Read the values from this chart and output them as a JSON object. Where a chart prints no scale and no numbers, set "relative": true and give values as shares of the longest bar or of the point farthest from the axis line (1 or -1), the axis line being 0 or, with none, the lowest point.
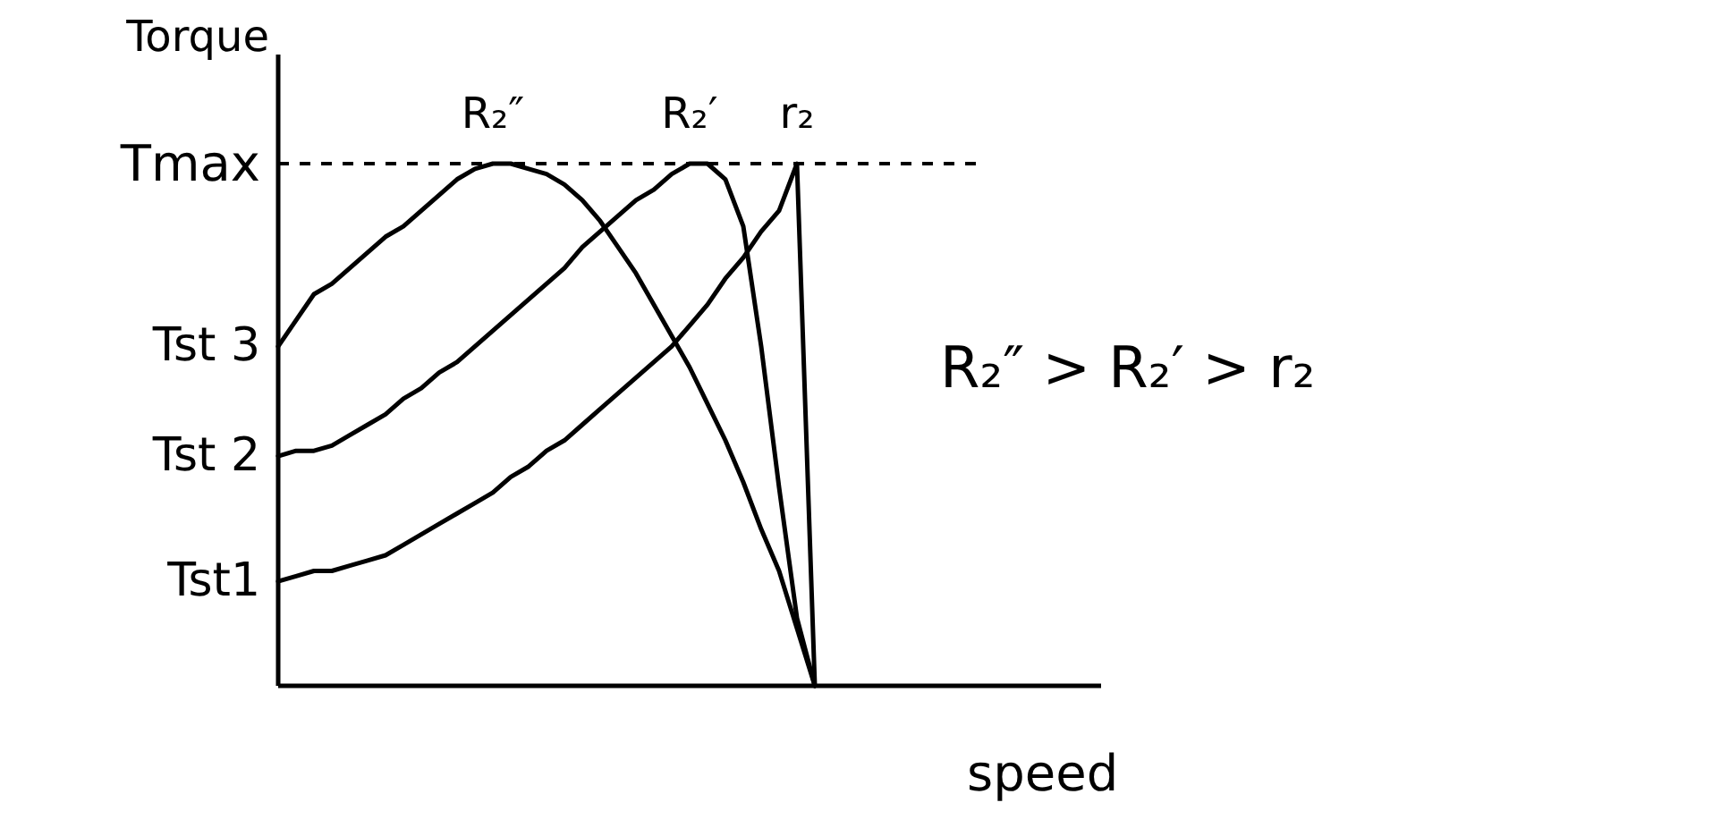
{
  "chart_data": {
    "type": "line",
    "relative": true,
    "xlabel": "speed",
    "ylabel": "Torque",
    "categories": [
      null,
      null,
      null,
      null,
      null,
      null,
      null,
      null,
      null,
      null,
      null,
      null,
      null,
      null,
      null,
      null,
      null,
      null,
      null,
      null,
      null,
      null,
      null,
      null,
      null,
      null,
      null,
      null,
      null,
      null,
      null
    ],
    "series": [
      {
        "name": "R₂″",
        "color": "#000000",
        "values": [
          0.65,
          0.7,
          0.75,
          0.77,
          0.8,
          0.83,
          0.86,
          0.88,
          0.91,
          0.94,
          0.97,
          0.99,
          1.0,
          1.0,
          0.99,
          0.98,
          0.96,
          0.93,
          0.89,
          0.84,
          0.79,
          0.73,
          0.67,
          0.61,
          0.54,
          0.47,
          0.39,
          0.3,
          0.22,
          0.11,
          0
        ]
      },
      {
        "name": "R₂′",
        "color": "#000000",
        "values": [
          0.44,
          0.45,
          0.45,
          0.46,
          0.48,
          0.5,
          0.52,
          0.55,
          0.57,
          0.6,
          0.62,
          0.65,
          0.68,
          0.71,
          0.74,
          0.77,
          0.8,
          0.84,
          0.87,
          0.9,
          0.93,
          0.95,
          0.98,
          1.0,
          1.0,
          0.97,
          0.88,
          0.65,
          0.38,
          0.13,
          0
        ]
      },
      {
        "name": "r₂",
        "color": "#000000",
        "values": [
          0.2,
          0.21,
          0.22,
          0.22,
          0.23,
          0.24,
          0.25,
          0.27,
          0.29,
          0.31,
          0.33,
          0.35,
          0.37,
          0.4,
          0.42,
          0.45,
          0.47,
          0.5,
          0.53,
          0.56,
          0.59,
          0.62,
          0.65,
          0.69,
          0.73,
          0.78,
          0.82,
          0.87,
          0.91,
          1.0,
          0
        ]
      }
    ],
    "ref_lines": [
      {
        "axis": "y",
        "value": 1,
        "label": "Tmax",
        "color": "#000000",
        "line_style": "dashed"
      }
    ],
    "annotations": [
      "Tst 3",
      "Tst 2",
      "Tst1",
      "R₂″ > R₂′ > r₂"
    ]
  }
}
